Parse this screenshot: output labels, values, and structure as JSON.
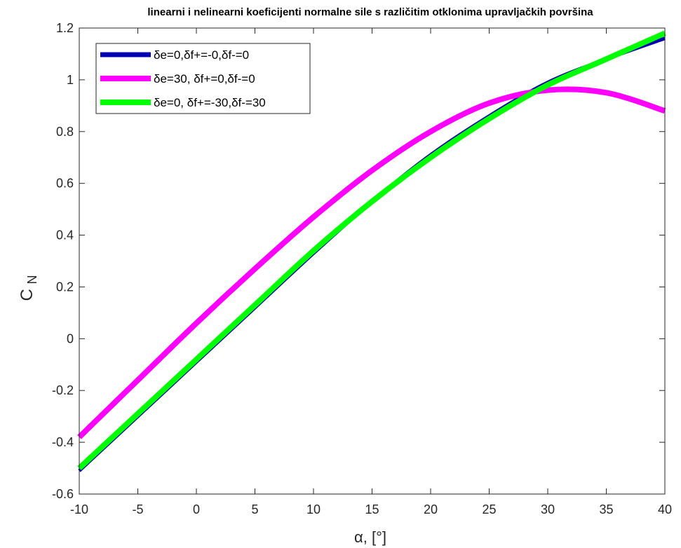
{
  "chart_data": {
    "type": "line",
    "title": "linearni i nelinearni koeficijenti normalne sile s različitim otklonima upravljačkih površina",
    "xlabel": "α, [°]",
    "ylabel": "C",
    "ylabel_sub": "N",
    "xlim": [
      -10,
      40
    ],
    "ylim": [
      -0.6,
      1.2
    ],
    "xticks": [
      -10,
      -5,
      0,
      5,
      10,
      15,
      20,
      25,
      30,
      35,
      40
    ],
    "yticks": [
      -0.6,
      -0.4,
      -0.2,
      0,
      0.2,
      0.4,
      0.6,
      0.8,
      1,
      1.2
    ],
    "xtick_labels": [
      "-10",
      "-5",
      "0",
      "5",
      "10",
      "15",
      "20",
      "25",
      "30",
      "35",
      "40"
    ],
    "ytick_labels": [
      "-0.6",
      "-0.4",
      "-0.2",
      "0",
      "0.2",
      "0.4",
      "0.6",
      "0.8",
      "1",
      "1.2"
    ],
    "grid": false,
    "legend_position": "top-left",
    "series": [
      {
        "name": "δe=0,δf+=-0,δf-=0",
        "color": "#0000b4",
        "x": [
          -10,
          -5,
          0,
          5,
          10,
          15,
          20,
          25,
          30,
          35,
          40
        ],
        "y": [
          -0.51,
          -0.3,
          -0.09,
          0.12,
          0.33,
          0.53,
          0.71,
          0.86,
          0.99,
          1.08,
          1.16
        ]
      },
      {
        "name": "δe=30, δf+=0,δf-=0",
        "color": "#ff00ff",
        "x": [
          -10,
          -5,
          0,
          5,
          10,
          15,
          20,
          25,
          30,
          35,
          40
        ],
        "y": [
          -0.38,
          -0.16,
          0.06,
          0.27,
          0.47,
          0.65,
          0.8,
          0.91,
          0.96,
          0.95,
          0.88
        ]
      },
      {
        "name": "δe=0, δf+=-30,δf-=30",
        "color": "#00ff00",
        "x": [
          -10,
          -5,
          0,
          5,
          10,
          15,
          20,
          25,
          30,
          35,
          40
        ],
        "y": [
          -0.5,
          -0.29,
          -0.08,
          0.13,
          0.34,
          0.53,
          0.7,
          0.85,
          0.98,
          1.08,
          1.18
        ]
      }
    ]
  }
}
